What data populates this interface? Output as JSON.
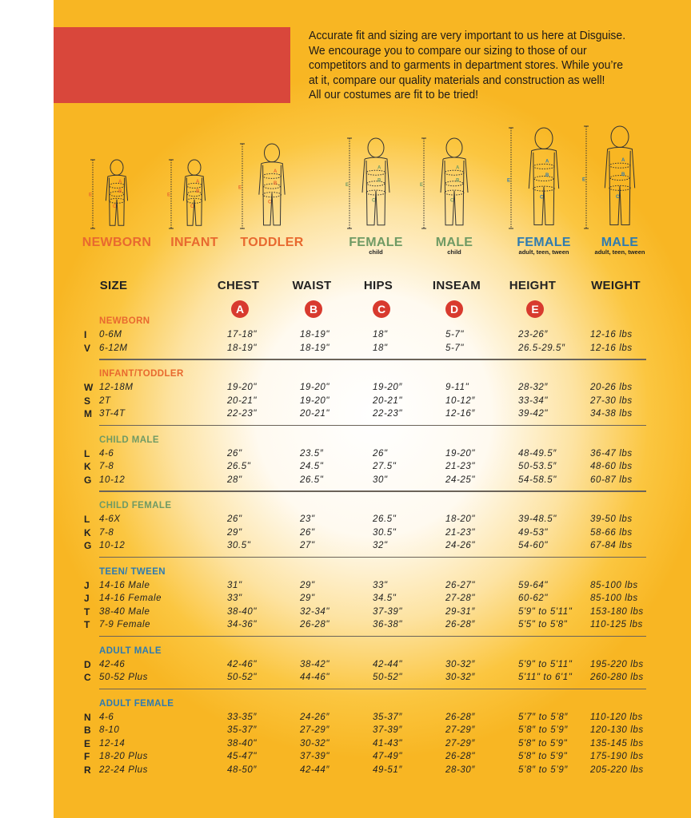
{
  "intro": "Accurate fit and sizing are very important to us here at Disguise.\nWe encourage you to compare our sizing to those of our\ncompetitors and to garments in department stores. While you’re\nat it, compare our quality materials and construction as well!\nAll our costumes are fit to be tried!",
  "colors": {
    "accent_red": "#d9473b",
    "orange": "#e8692f",
    "green": "#6f9a64",
    "blue": "#2f7bb0",
    "background": "#f8b623"
  },
  "figures": [
    {
      "label": "NEWBORN",
      "sub": "",
      "color": "#e8692f"
    },
    {
      "label": "INFANT",
      "sub": "",
      "color": "#e8692f"
    },
    {
      "label": "TODDLER",
      "sub": "",
      "color": "#e8692f"
    },
    {
      "label": "FEMALE",
      "sub": "child",
      "color": "#6f9a64"
    },
    {
      "label": "MALE",
      "sub": "child",
      "color": "#6f9a64"
    },
    {
      "label": "FEMALE",
      "sub": "adult, teen, tween",
      "color": "#2f7bb0"
    },
    {
      "label": "MALE",
      "sub": "adult, teen, tween",
      "color": "#2f7bb0"
    }
  ],
  "figure_marks": {
    "a": "A",
    "b": "B",
    "c": "C",
    "d": "D",
    "e": "E"
  },
  "header": {
    "size": "SIZE",
    "chest": "CHEST",
    "waist": "WAIST",
    "hips": "HIPS",
    "inseam": "INSEAM",
    "height": "HEIGHT",
    "weight": "WEIGHT",
    "badges": [
      "A",
      "B",
      "C",
      "D",
      "E"
    ]
  },
  "sections": [
    {
      "title": "NEWBORN",
      "color": "#e8692f",
      "rows": [
        [
          "I",
          "0-6M",
          "17-18\"",
          "18-19\"",
          "18\"",
          "5-7\"",
          "23-26″",
          "12-16 lbs"
        ],
        [
          "V",
          "6-12M",
          "18-19\"",
          "18-19\"",
          "18\"",
          "5-7\"",
          "26.5-29.5″",
          "12-16 lbs"
        ]
      ]
    },
    {
      "title": "INFANT/TODDLER",
      "color": "#e8692f",
      "rows": [
        [
          "W",
          "12-18M",
          "19-20\"",
          "19-20\"",
          "19-20″",
          "9-11\"",
          "28-32″",
          "20-26 lbs"
        ],
        [
          "S",
          "2T",
          "20-21\"",
          "19-20\"",
          "20-21\"",
          "10-12″",
          "33-34\"",
          "27-30 lbs"
        ],
        [
          "M",
          "3T-4T",
          "22-23\"",
          "20-21\"",
          "22-23\"",
          "12-16″",
          "39-42\"",
          "34-38 lbs"
        ]
      ]
    },
    {
      "title": "CHILD MALE",
      "color": "#6f9a64",
      "rows": [
        [
          "L",
          "4-6",
          "26\"",
          "23.5″",
          "26\"",
          "19-20\"",
          "48-49.5″",
          "36-47 lbs"
        ],
        [
          "K",
          "7-8",
          "26.5\"",
          "24.5\"",
          "27.5\"",
          "21-23\"",
          "50-53.5″",
          "48-60 lbs"
        ],
        [
          "G",
          "10-12",
          "28\"",
          "26.5\"",
          "30\"",
          "24-25\"",
          "54-58.5\"",
          "60-87 lbs"
        ]
      ]
    },
    {
      "title": "CHILD FEMALE",
      "color": "#6f9a64",
      "rows": [
        [
          "L",
          "4-6X",
          "26\"",
          "23\"",
          "26.5\"",
          "18-20\"",
          "39-48.5\"",
          "39-50 lbs"
        ],
        [
          "K",
          "7-8",
          "29\"",
          "26\"",
          "30.5\"",
          "21-23\"",
          "49-53\"",
          "58-66 lbs"
        ],
        [
          "G",
          "10-12",
          "30.5\"",
          "27\"",
          "32\"",
          "24-26\"",
          "54-60\"",
          "67-84 lbs"
        ]
      ]
    },
    {
      "title": "TEEN/ TWEEN",
      "color": "#2f7bb0",
      "rows": [
        [
          "J",
          "14-16 Male",
          "31\"",
          "29\"",
          "33\"",
          "26-27\"",
          "59-64\"",
          "85-100 lbs"
        ],
        [
          "J",
          "14-16 Female",
          "33\"",
          "29\"",
          "34.5\"",
          "27-28\"",
          "60-62\"",
          "85-100 lbs"
        ],
        [
          "T",
          "38-40 Male",
          "38-40\"",
          "32-34\"",
          "37-39\"",
          "29-31″",
          "5'9\" to 5'11\"",
          "153-180 lbs"
        ],
        [
          "T",
          "7-9 Female",
          "34-36\"",
          "26-28\"",
          "36-38\"",
          "26-28″",
          "5'5\" to 5'8\"",
          "110-125 lbs"
        ]
      ]
    },
    {
      "title": "ADULT MALE",
      "color": "#2f7bb0",
      "rows": [
        [
          "D",
          "42-46",
          "42-46\"",
          "38-42\"",
          "42-44\"",
          "30-32″",
          "5'9\" to 5'11\"",
          "195-220 lbs"
        ],
        [
          "C",
          "50-52 Plus",
          "50-52\"",
          "44-46\"",
          "50-52\"",
          "30-32″",
          "5'11\" to 6'1\"",
          "260-280 lbs"
        ]
      ]
    },
    {
      "title": "ADULT FEMALE",
      "color": "#2f7bb0",
      "rows": [
        [
          "N",
          "4-6",
          "33-35″",
          "24-26″",
          "35-37″",
          "26-28″",
          "5’7″ to 5’8″",
          "110-120 lbs"
        ],
        [
          "B",
          "8-10",
          "35-37″",
          "27-29″",
          "37-39″",
          "27-29″",
          "5’8″ to 5’9″",
          "120-130 lbs"
        ],
        [
          "E",
          "12-14",
          "38-40\"",
          "30-32\"",
          "41-43\"",
          "27-29″",
          "5'8\" to 5'9\"",
          "135-145 lbs"
        ],
        [
          "F",
          "18-20 Plus",
          "45-47\"",
          "37-39\"",
          "47-49\"",
          "26-28\"",
          "5'8\" to 5'9\"",
          "175-190 lbs"
        ],
        [
          "R",
          "22-24 Plus",
          "48-50″",
          "42-44″",
          "49-51″",
          "28-30″",
          "5’8″ to 5’9″",
          "205-220 lbs"
        ]
      ]
    }
  ]
}
